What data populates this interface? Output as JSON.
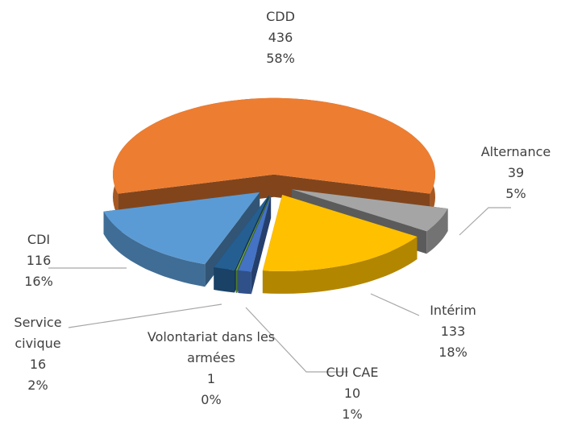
{
  "chart_data": {
    "type": "pie",
    "categories": [
      "CDD",
      "Alternance",
      "Intérim",
      "CUI CAE",
      "Volontariat dans les armées",
      "Service civique",
      "CDI"
    ],
    "values": [
      436,
      39,
      133,
      10,
      1,
      16,
      116
    ],
    "percent_labels": [
      "58%",
      "5%",
      "18%",
      "1%",
      "0%",
      "2%",
      "16%"
    ],
    "colors": [
      "#ed7d31",
      "#a5a5a5",
      "#ffc000",
      "#4472c4",
      "#70ad47",
      "#255e91",
      "#5b9bd5"
    ]
  }
}
